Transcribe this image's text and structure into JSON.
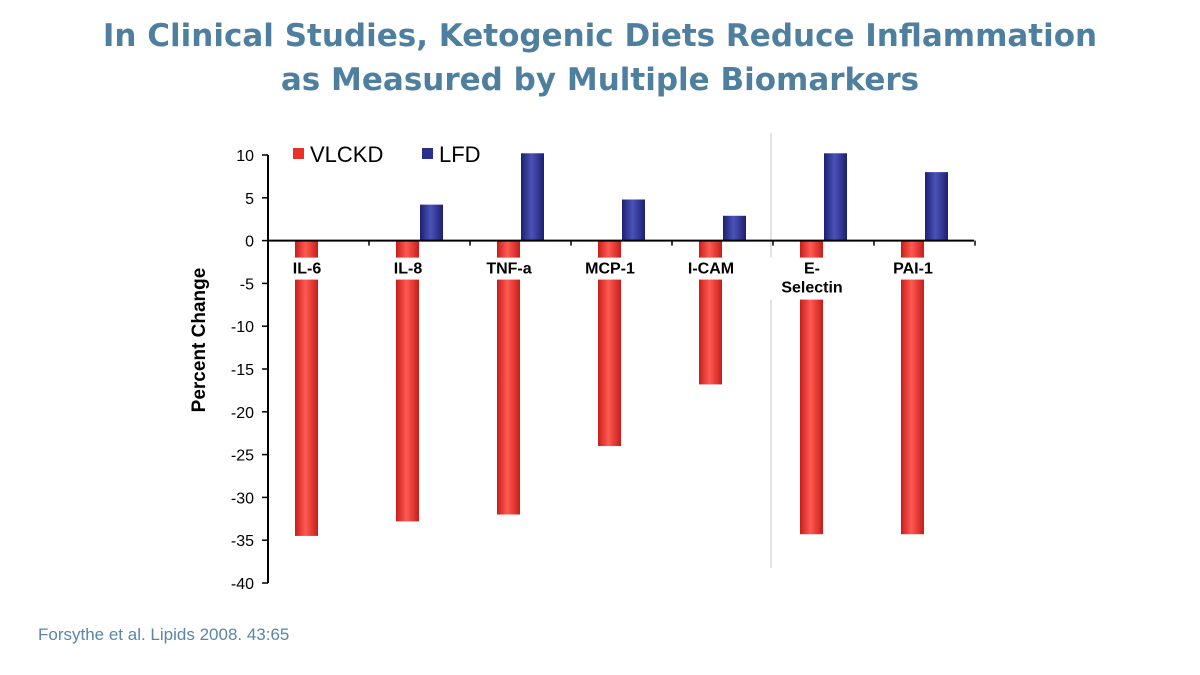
{
  "title": {
    "line1": "In Clinical Studies, Ketogenic Diets Reduce Inflammation",
    "line2": "as Measured by Multiple Biomarkers"
  },
  "source": "Forsythe et al. Lipids 2008. 43:65",
  "chart_data": {
    "type": "bar",
    "title": "",
    "xlabel": "",
    "ylabel": "Percent Change",
    "ylim": [
      -40,
      10
    ],
    "yticks": [
      10,
      5,
      0,
      -5,
      -10,
      -15,
      -20,
      -25,
      -30,
      -35,
      -40
    ],
    "categories": [
      "IL-6",
      "IL-8",
      "TNF-a",
      "MCP-1",
      "I-CAM",
      "E-\nSelectin",
      "PAI-1"
    ],
    "series": [
      {
        "name": "VLCKD",
        "color": "#e8302c",
        "values": [
          -34.5,
          -32.8,
          -32.0,
          -24.0,
          -16.8,
          -34.3,
          -34.3
        ]
      },
      {
        "name": "LFD",
        "color": "#2a2f8c",
        "values": [
          0,
          4.2,
          10.2,
          4.8,
          2.9,
          10.2,
          8.0
        ]
      }
    ],
    "legend": "top-left",
    "grid": false
  }
}
